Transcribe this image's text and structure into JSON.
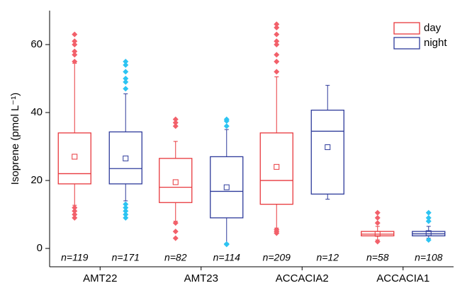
{
  "chart_data": {
    "type": "box",
    "ylabel": "Isoprene (pmol L⁻¹)",
    "categories": [
      "AMT22",
      "AMT23",
      "ACCACIA2",
      "ACCACIA1"
    ],
    "ylim": [
      -5.4,
      70
    ],
    "yticks": [
      0,
      20,
      40,
      60
    ],
    "series": [
      {
        "name": "day",
        "color": "#e8383d",
        "outlier_color": "#f2606a",
        "stats": [
          {
            "low": 12.7,
            "q1": 19,
            "median": 22,
            "q3": 34,
            "high": 54.5,
            "mean": 27,
            "outliers": [
              55,
              57,
              58,
              60,
              61,
              63,
              12,
              11,
              10,
              9
            ],
            "n": "n=119"
          },
          {
            "low": 8,
            "q1": 13.5,
            "median": 18,
            "q3": 26.5,
            "high": 31.5,
            "mean": 19.5,
            "outliers": [
              36,
              37,
              38,
              7.5,
              5,
              3
            ],
            "n": "n=82"
          },
          {
            "low": 6,
            "q1": 13,
            "median": 20,
            "q3": 34,
            "high": 50.5,
            "mean": 24,
            "outliers": [
              52,
              55,
              57,
              60,
              61,
              63,
              65,
              66,
              5.5,
              5,
              4.5
            ],
            "n": "n=209"
          },
          {
            "low": 2.5,
            "q1": 3.7,
            "median": 4.2,
            "q3": 5,
            "high": 6.5,
            "mean": 4.3,
            "outliers": [
              7.5,
              9,
              10.5,
              2
            ],
            "n": "n=58"
          }
        ]
      },
      {
        "name": "night",
        "color": "#2e3b9b",
        "outlier_color": "#2cc4f2",
        "stats": [
          {
            "low": 14,
            "q1": 19,
            "median": 23.5,
            "q3": 34.3,
            "high": 45.5,
            "mean": 26.5,
            "outliers": [
              47,
              49,
              50,
              52,
              54,
              55,
              13,
              12,
              11,
              10,
              9
            ],
            "n": "n=171"
          },
          {
            "low": 1.5,
            "q1": 9,
            "median": 16.8,
            "q3": 27,
            "high": 35,
            "mean": 18,
            "outliers": [
              36,
              37.5,
              38,
              1.2,
              1.3
            ],
            "n": "n=114"
          },
          {
            "low": 14.5,
            "q1": 16,
            "median": 34.5,
            "q3": 40.7,
            "high": 48,
            "mean": 29.8,
            "outliers": [],
            "n": "n=12"
          },
          {
            "low": 3,
            "q1": 3.7,
            "median": 4.3,
            "q3": 5,
            "high": 6.5,
            "mean": 4.5,
            "outliers": [
              8,
              9,
              10.5,
              2.5
            ],
            "n": "n=108"
          }
        ]
      }
    ]
  }
}
